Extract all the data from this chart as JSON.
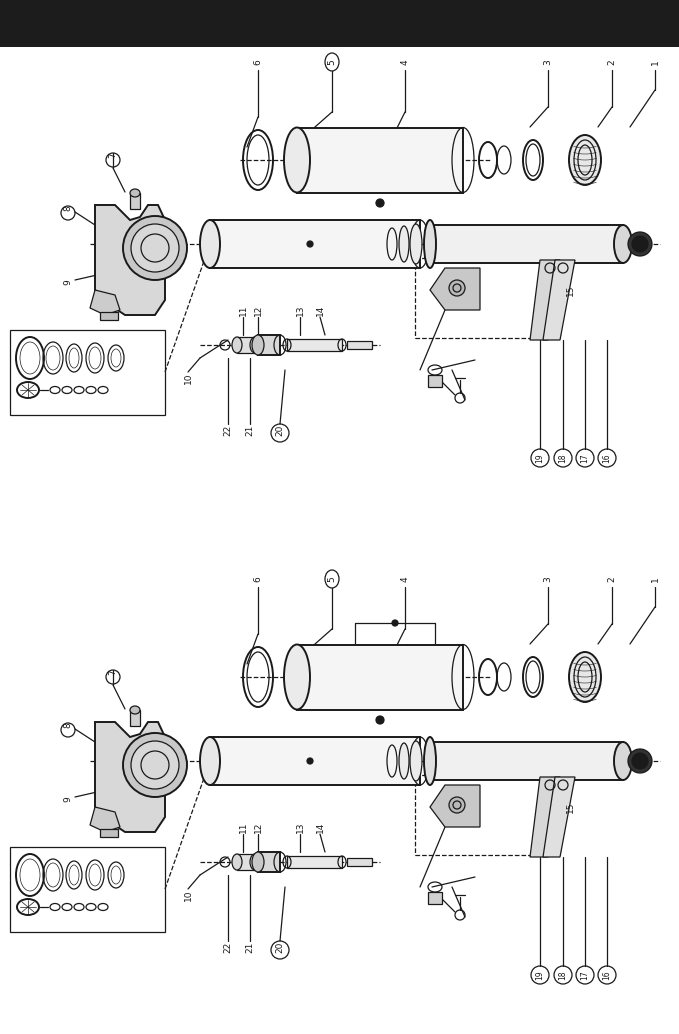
{
  "bg_color": "#ffffff",
  "dark_bar_color": "#1c1c1c",
  "line_color": "#1a1a1a",
  "fig_width": 6.79,
  "fig_height": 10.34,
  "dpi": 100
}
